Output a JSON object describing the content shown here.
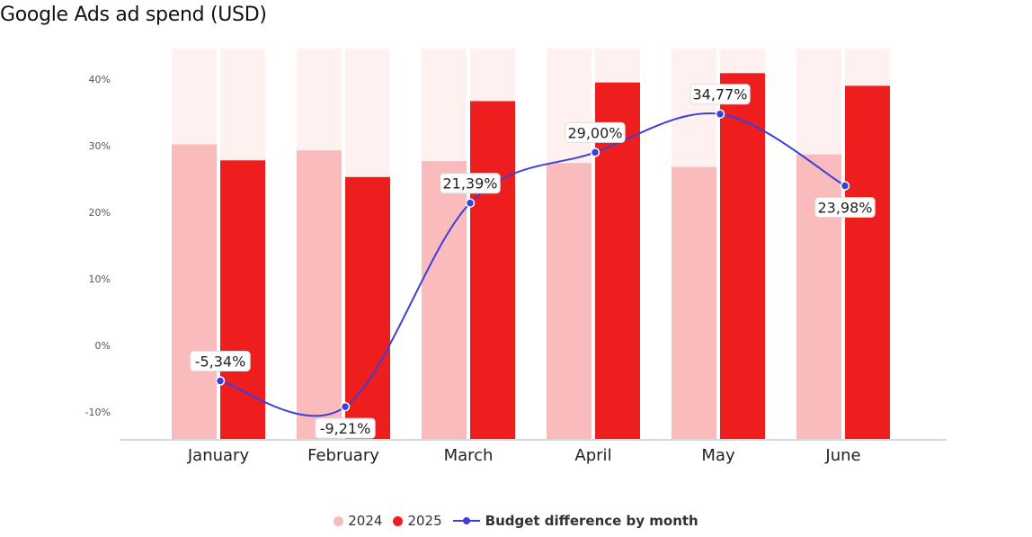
{
  "title": "Google Ads ad spend (USD)",
  "colors": {
    "bar_2024": "#f9bbbb",
    "bar_2025": "#ee1d1e",
    "column_bg": "#fef1ef",
    "line": "#3d3fdb",
    "axis": "#cccccc",
    "text": "#222222"
  },
  "chart_data": {
    "type": "bar",
    "categories": [
      "January",
      "February",
      "March",
      "April",
      "May",
      "June"
    ],
    "ylim": [
      -14,
      44
    ],
    "yticks": [
      -10,
      0,
      10,
      20,
      30,
      40
    ],
    "ytick_labels": [
      "-10%",
      "0%",
      "10%",
      "20%",
      "30%",
      "40%"
    ],
    "grid": false,
    "series": [
      {
        "name": "2024",
        "type": "bar",
        "values": [
          30.2,
          29.3,
          27.7,
          27.4,
          26.8,
          28.7
        ]
      },
      {
        "name": "2025",
        "type": "bar",
        "values": [
          27.8,
          25.3,
          36.7,
          39.5,
          40.9,
          39.0
        ]
      },
      {
        "name": "Budget difference by month",
        "type": "line",
        "values": [
          -5.34,
          -9.21,
          21.39,
          29.0,
          34.77,
          23.98
        ],
        "labels": [
          "-5,34%",
          "-9,21%",
          "21,39%",
          "29,00%",
          "34,77%",
          "23,98%"
        ]
      }
    ],
    "legend_position": "bottom-center"
  },
  "legend": {
    "item_2024": "2024",
    "item_2025": "2025",
    "item_line": "Budget difference by month"
  }
}
